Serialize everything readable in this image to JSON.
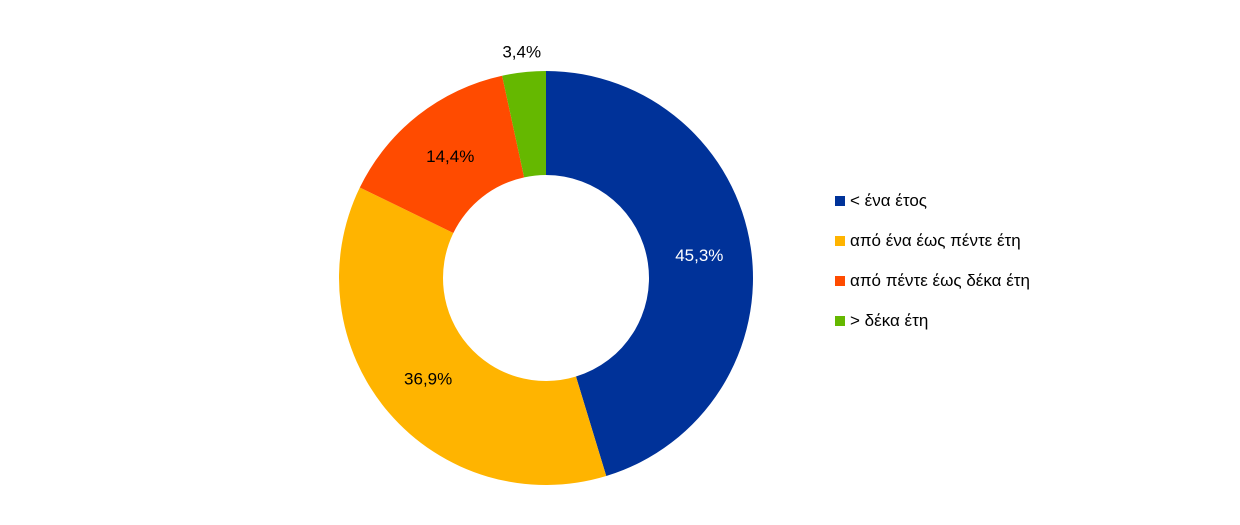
{
  "chart_data": {
    "type": "pie",
    "variant": "donut",
    "title": "",
    "categories": [
      "< ένα έτος",
      "από ένα έως πέντε έτη",
      "από πέντε έως δέκα έτη",
      "> δέκα έτη"
    ],
    "values": [
      45.3,
      36.9,
      14.4,
      3.4
    ],
    "data_labels": [
      "45,3%",
      "36,9%",
      "14,4%",
      "3,4%"
    ],
    "colors": [
      "#003299",
      "#FFB400",
      "#FF4B00",
      "#65B800"
    ],
    "label_colors": [
      "#ffffff",
      "#000000",
      "#000000",
      "#000000"
    ],
    "unit": "%",
    "legend_position": "right",
    "start_angle": "top, clockwise"
  }
}
